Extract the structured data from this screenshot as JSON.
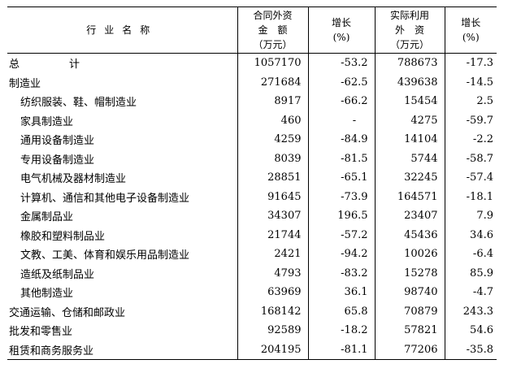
{
  "header": {
    "industry": "行业名称",
    "contract_line1": "合同外资",
    "contract_line2": "金　额",
    "contract_line3": "（万元）",
    "growth1_line1": "增长",
    "growth1_line2": "(%)",
    "actual_line1": "实际利用",
    "actual_line2": "外　资",
    "actual_line3": "（万元）",
    "growth2_line1": "增长",
    "growth2_line2": "(%)"
  },
  "rows": [
    {
      "name": "总　计",
      "contract": "1057170",
      "growth1": "-53.2",
      "actual": "788673",
      "growth2": "-17.3"
    },
    {
      "name": "制造业",
      "contract": "271684",
      "growth1": "-62.5",
      "actual": "439638",
      "growth2": "-14.5"
    },
    {
      "name": "纺织服装、鞋、帽制造业",
      "contract": "8917",
      "growth1": "-66.2",
      "actual": "15454",
      "growth2": "2.5"
    },
    {
      "name": "家具制造业",
      "contract": "460",
      "growth1": "-",
      "actual": "4275",
      "growth2": "-59.7"
    },
    {
      "name": "通用设备制造业",
      "contract": "4259",
      "growth1": "-84.9",
      "actual": "14104",
      "growth2": "-2.2"
    },
    {
      "name": "专用设备制造业",
      "contract": "8039",
      "growth1": "-81.5",
      "actual": "5744",
      "growth2": "-58.7"
    },
    {
      "name": "电气机械及器材制造业",
      "contract": "28851",
      "growth1": "-65.1",
      "actual": "32245",
      "growth2": "-57.4"
    },
    {
      "name": "计算机、通信和其他电子设备制造业",
      "contract": "91645",
      "growth1": "-73.9",
      "actual": "164571",
      "growth2": "-18.1"
    },
    {
      "name": "金属制品业",
      "contract": "34307",
      "growth1": "196.5",
      "actual": "23407",
      "growth2": "7.9"
    },
    {
      "name": "橡胶和塑料制品业",
      "contract": "21744",
      "growth1": "-57.2",
      "actual": "45436",
      "growth2": "34.6"
    },
    {
      "name": "文教、工美、体育和娱乐用品制造业",
      "contract": "2421",
      "growth1": "-94.2",
      "actual": "10026",
      "growth2": "-6.4"
    },
    {
      "name": "造纸及纸制品业",
      "contract": "4793",
      "growth1": "-83.2",
      "actual": "15278",
      "growth2": "85.9"
    },
    {
      "name": "其他制造业",
      "contract": "63969",
      "growth1": "36.1",
      "actual": "98740",
      "growth2": "-4.7"
    },
    {
      "name": "交通运输、仓储和邮政业",
      "contract": "168142",
      "growth1": "65.8",
      "actual": "70879",
      "growth2": "243.3"
    },
    {
      "name": "批发和零售业",
      "contract": "92589",
      "growth1": "-18.2",
      "actual": "57821",
      "growth2": "54.6"
    },
    {
      "name": "租赁和商务服务业",
      "contract": "204195",
      "growth1": "-81.1",
      "actual": "77206",
      "growth2": "-35.8"
    }
  ]
}
